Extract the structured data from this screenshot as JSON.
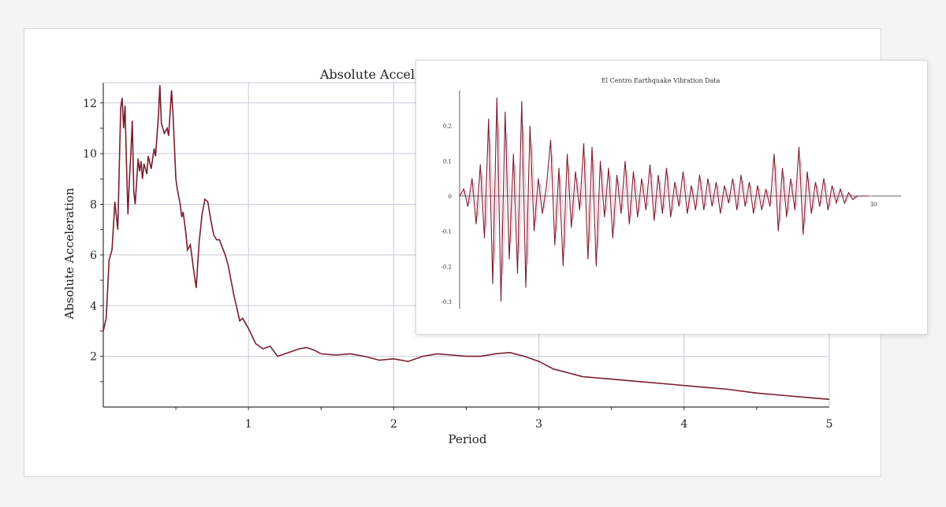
{
  "colors": {
    "line": "#7a1d2e",
    "line_light": "#e39aa8",
    "grid": "#c9c9d9",
    "axis": "#333333"
  },
  "chart_data": [
    {
      "type": "line",
      "title": "Absolute Accele",
      "xlabel": "Period",
      "ylabel": "Absolute Acceleration",
      "xlim": [
        0,
        5
      ],
      "ylim": [
        0,
        12.8
      ],
      "x_ticks": [
        1,
        2,
        3,
        4,
        5
      ],
      "y_ticks": [
        2,
        4,
        6,
        8,
        10,
        12
      ],
      "x_tick_labels": [
        "1",
        "2",
        "3",
        "4",
        "5"
      ],
      "y_tick_labels": [
        "2",
        "4",
        "6",
        "8",
        "10",
        "12"
      ],
      "grid": true,
      "series": [
        {
          "x": [
            0.0,
            0.02,
            0.04,
            0.06,
            0.08,
            0.1,
            0.12,
            0.13,
            0.14,
            0.15,
            0.16,
            0.17,
            0.18,
            0.19,
            0.2,
            0.21,
            0.22,
            0.24,
            0.25,
            0.26,
            0.27,
            0.28,
            0.3,
            0.31,
            0.33,
            0.35,
            0.36,
            0.38,
            0.39,
            0.4,
            0.42,
            0.44,
            0.45,
            0.47,
            0.48,
            0.5,
            0.51,
            0.53,
            0.54,
            0.55,
            0.57,
            0.58,
            0.6,
            0.62,
            0.64,
            0.66,
            0.68,
            0.7,
            0.72,
            0.74,
            0.76,
            0.78,
            0.8,
            0.82,
            0.84,
            0.86,
            0.88,
            0.9,
            0.92,
            0.94,
            0.96,
            0.98,
            1.0,
            1.05,
            1.1,
            1.15,
            1.2,
            1.25,
            1.3,
            1.35,
            1.4,
            1.45,
            1.5,
            1.6,
            1.7,
            1.8,
            1.9,
            2.0,
            2.1,
            2.2,
            2.3,
            2.4,
            2.5,
            2.6,
            2.7,
            2.8,
            2.9,
            3.0,
            3.1,
            3.2,
            3.3,
            3.5,
            3.7,
            3.9,
            4.1,
            4.3,
            4.5,
            4.7,
            4.9,
            5.0
          ],
          "y": [
            3.0,
            3.5,
            5.8,
            6.2,
            8.1,
            7.0,
            11.8,
            12.2,
            11.0,
            11.9,
            9.5,
            7.6,
            9.0,
            10.0,
            11.3,
            8.5,
            8.0,
            9.8,
            9.3,
            9.7,
            9.0,
            9.6,
            9.2,
            9.9,
            9.4,
            10.2,
            9.9,
            11.5,
            12.7,
            11.2,
            10.8,
            11.0,
            10.7,
            12.5,
            11.6,
            9.0,
            8.6,
            8.0,
            7.5,
            7.7,
            6.8,
            6.2,
            6.4,
            5.5,
            4.7,
            6.5,
            7.6,
            8.2,
            8.1,
            7.4,
            6.8,
            6.6,
            6.6,
            6.3,
            6.0,
            5.6,
            5.0,
            4.4,
            3.9,
            3.4,
            3.5,
            3.3,
            3.1,
            2.5,
            2.3,
            2.4,
            2.0,
            2.1,
            2.2,
            2.3,
            2.35,
            2.25,
            2.1,
            2.05,
            2.1,
            2.0,
            1.85,
            1.9,
            1.8,
            2.0,
            2.1,
            2.05,
            2.0,
            2.0,
            2.1,
            2.15,
            2.0,
            1.8,
            1.5,
            1.35,
            1.2,
            1.1,
            1.0,
            0.9,
            0.8,
            0.7,
            0.55,
            0.45,
            0.35,
            0.3
          ]
        }
      ]
    },
    {
      "type": "line",
      "title": "El Centro Earthquake Vibration Data",
      "xlim": [
        0,
        32
      ],
      "ylim": [
        -0.32,
        0.3
      ],
      "y_ticks": [
        0.2,
        0.1,
        0,
        -0.1,
        -0.2,
        -0.3
      ],
      "y_tick_labels": [
        "0.2",
        "0.1",
        "0",
        "-0.1",
        "-0.2",
        "-0.3"
      ],
      "x_ticks": [
        30
      ],
      "x_tick_labels": [
        "30"
      ],
      "grid": false,
      "series": [
        {
          "x": [
            0.0,
            0.3,
            0.6,
            0.9,
            1.2,
            1.5,
            1.8,
            2.1,
            2.4,
            2.7,
            3.0,
            3.3,
            3.6,
            3.9,
            4.2,
            4.5,
            4.8,
            5.1,
            5.4,
            5.7,
            6.0,
            6.3,
            6.6,
            6.9,
            7.2,
            7.5,
            7.8,
            8.1,
            8.4,
            8.7,
            9.0,
            9.3,
            9.6,
            9.9,
            10.2,
            10.5,
            10.8,
            11.1,
            11.4,
            11.7,
            12.0,
            12.3,
            12.6,
            12.9,
            13.2,
            13.5,
            13.8,
            14.1,
            14.4,
            14.7,
            15.0,
            15.3,
            15.6,
            15.9,
            16.2,
            16.5,
            16.8,
            17.1,
            17.4,
            17.7,
            18.0,
            18.3,
            18.6,
            18.9,
            19.2,
            19.5,
            19.8,
            20.1,
            20.4,
            20.7,
            21.0,
            21.3,
            21.6,
            21.9,
            22.2,
            22.5,
            22.8,
            23.1,
            23.4,
            23.7,
            24.0,
            24.3,
            24.6,
            24.9,
            25.2,
            25.5,
            25.8,
            26.1,
            26.4,
            26.7,
            27.0,
            27.3,
            27.6,
            27.9,
            28.2,
            28.5,
            28.8,
            29.1,
            29.4,
            29.7
          ],
          "y": [
            0.0,
            0.02,
            -0.03,
            0.05,
            -0.08,
            0.09,
            -0.12,
            0.22,
            -0.25,
            0.28,
            -0.3,
            0.24,
            -0.18,
            0.12,
            -0.22,
            0.27,
            -0.26,
            0.2,
            -0.1,
            0.05,
            -0.05,
            0.03,
            0.16,
            -0.14,
            0.08,
            -0.2,
            0.12,
            -0.09,
            0.07,
            -0.04,
            0.15,
            -0.18,
            0.14,
            -0.2,
            0.1,
            -0.06,
            0.08,
            -0.12,
            0.06,
            -0.05,
            0.1,
            -0.08,
            0.07,
            -0.06,
            0.05,
            -0.04,
            0.09,
            -0.07,
            0.06,
            -0.05,
            0.08,
            -0.06,
            0.04,
            -0.03,
            0.07,
            -0.05,
            0.03,
            -0.04,
            0.06,
            -0.04,
            0.05,
            -0.03,
            0.04,
            -0.05,
            0.03,
            -0.02,
            0.05,
            -0.04,
            0.06,
            -0.03,
            0.04,
            -0.05,
            0.03,
            -0.04,
            0.02,
            -0.03,
            0.12,
            -0.1,
            0.08,
            -0.06,
            0.05,
            -0.04,
            0.14,
            -0.11,
            0.07,
            -0.05,
            0.04,
            -0.03,
            0.05,
            -0.04,
            0.03,
            -0.02,
            0.02,
            -0.02,
            0.01,
            -0.01,
            0.0,
            0.0,
            0.0,
            0.0
          ]
        }
      ]
    }
  ]
}
